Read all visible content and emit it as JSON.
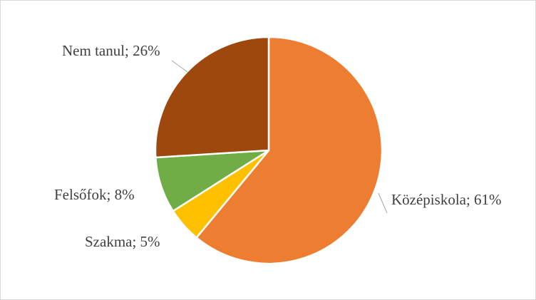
{
  "chart_data": {
    "type": "pie",
    "title": "",
    "series": [
      {
        "values": [
          61,
          5,
          8,
          26
        ],
        "categories": [
          "Középiskola",
          "Szakma",
          "Felsőfok",
          "Nem tanul"
        ],
        "colors": [
          "#ed7d31",
          "#ffc000",
          "#70ad47",
          "#9e480e"
        ]
      }
    ],
    "data_labels": [
      "Középiskola; 61%",
      "Szakma; 5%",
      "Felsőfok; 8%",
      "Nem tanul; 26%"
    ],
    "legend": "none",
    "start_angle": "12 o'clock",
    "direction": "clockwise"
  }
}
